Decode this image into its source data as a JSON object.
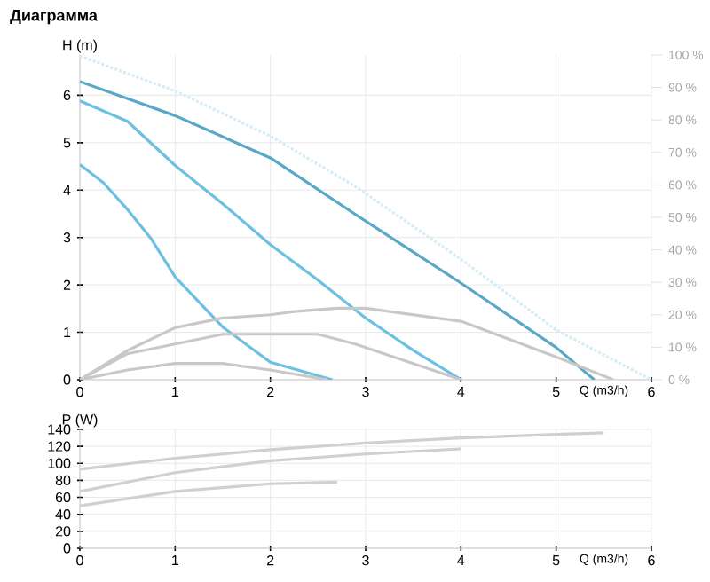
{
  "chart_data": [
    {
      "type": "line",
      "title": "Диаграмма",
      "xlabel": "Q (m3/h)",
      "ylabel": "H (m)",
      "xlim": [
        0,
        6
      ],
      "ylim": [
        0,
        6.85
      ],
      "xticks": [
        0,
        1,
        2,
        3,
        4,
        5,
        6
      ],
      "yticks": [
        0,
        1,
        2,
        3,
        4,
        5,
        6
      ],
      "y2lim": [
        0,
        100
      ],
      "y2ticks": [
        {
          "value": 0,
          "label": "0 %"
        },
        {
          "value": 10,
          "label": "10 %"
        },
        {
          "value": 20,
          "label": "20 %"
        },
        {
          "value": 30,
          "label": "30 %"
        },
        {
          "value": 40,
          "label": "40 %"
        },
        {
          "value": 50,
          "label": "50 %"
        },
        {
          "value": 60,
          "label": "60 %"
        },
        {
          "value": 70,
          "label": "70 %"
        },
        {
          "value": 80,
          "label": "80 %"
        },
        {
          "value": 90,
          "label": "90 %"
        },
        {
          "value": 100,
          "label": "100 %"
        }
      ],
      "grid": true,
      "series": [
        {
          "color": "#d6ecf6",
          "line_style": "dotted",
          "x": [
            0,
            1,
            2,
            2.89,
            4,
            5,
            6
          ],
          "values": [
            6.83,
            6.09,
            5.14,
            4.08,
            2.54,
            1.05,
            0
          ]
        },
        {
          "color": "#c8c8c8",
          "axis": "y2",
          "x": [
            0,
            0.5,
            1,
            1.5,
            2,
            2.25,
            2.7,
            3,
            4,
            5,
            5.6
          ],
          "values": [
            0,
            9,
            16,
            19,
            20,
            21,
            22,
            22,
            18,
            7,
            0
          ]
        },
        {
          "color": "#c8c8c8",
          "axis": "y2",
          "x": [
            0,
            0.5,
            1,
            1.5,
            2,
            2.5,
            2.89,
            3.5,
            4
          ],
          "values": [
            0,
            8,
            11,
            14,
            14,
            14,
            11,
            5,
            0
          ]
        },
        {
          "color": "#c8c8c8",
          "axis": "y2",
          "x": [
            0,
            0.5,
            1,
            1.5,
            2,
            2.6
          ],
          "values": [
            0,
            3,
            5,
            5,
            3,
            0
          ]
        },
        {
          "color": "#5aa8c8",
          "x": [
            0,
            1,
            2,
            2.89,
            4,
            5,
            5.4
          ],
          "values": [
            6.29,
            5.57,
            4.68,
            3.49,
            2.04,
            0.68,
            0
          ]
        },
        {
          "color": "#6cc0e0",
          "x": [
            0,
            0.5,
            1,
            1.5,
            2,
            2.5,
            3,
            3.5,
            4
          ],
          "values": [
            5.88,
            5.45,
            4.52,
            3.71,
            2.85,
            2.1,
            1.3,
            0.62,
            0
          ]
        },
        {
          "color": "#6cc0e0",
          "x": [
            0,
            0.25,
            0.5,
            0.75,
            1,
            1.5,
            2,
            2.65
          ],
          "values": [
            4.54,
            4.15,
            3.59,
            2.97,
            2.17,
            1.11,
            0.37,
            0
          ]
        }
      ]
    },
    {
      "type": "line",
      "xlabel": "Q (m3/h)",
      "ylabel": "P (W)",
      "xlim": [
        0,
        6
      ],
      "ylim": [
        0,
        140
      ],
      "xticks": [
        0,
        1,
        2,
        3,
        4,
        5,
        6
      ],
      "yticks": [
        0,
        20,
        40,
        60,
        80,
        100,
        120,
        140
      ],
      "grid": true,
      "series": [
        {
          "color": "#d0d0d0",
          "x": [
            0,
            1,
            2,
            3,
            4,
            5,
            5.5
          ],
          "values": [
            93,
            106,
            116,
            124,
            130,
            134,
            136
          ]
        },
        {
          "color": "#d0d0d0",
          "x": [
            0,
            1,
            2,
            3,
            4
          ],
          "values": [
            67,
            89,
            103,
            111,
            117
          ]
        },
        {
          "color": "#d0d0d0",
          "x": [
            0,
            1,
            2,
            2.7
          ],
          "values": [
            50,
            67,
            76,
            78
          ]
        }
      ]
    }
  ]
}
